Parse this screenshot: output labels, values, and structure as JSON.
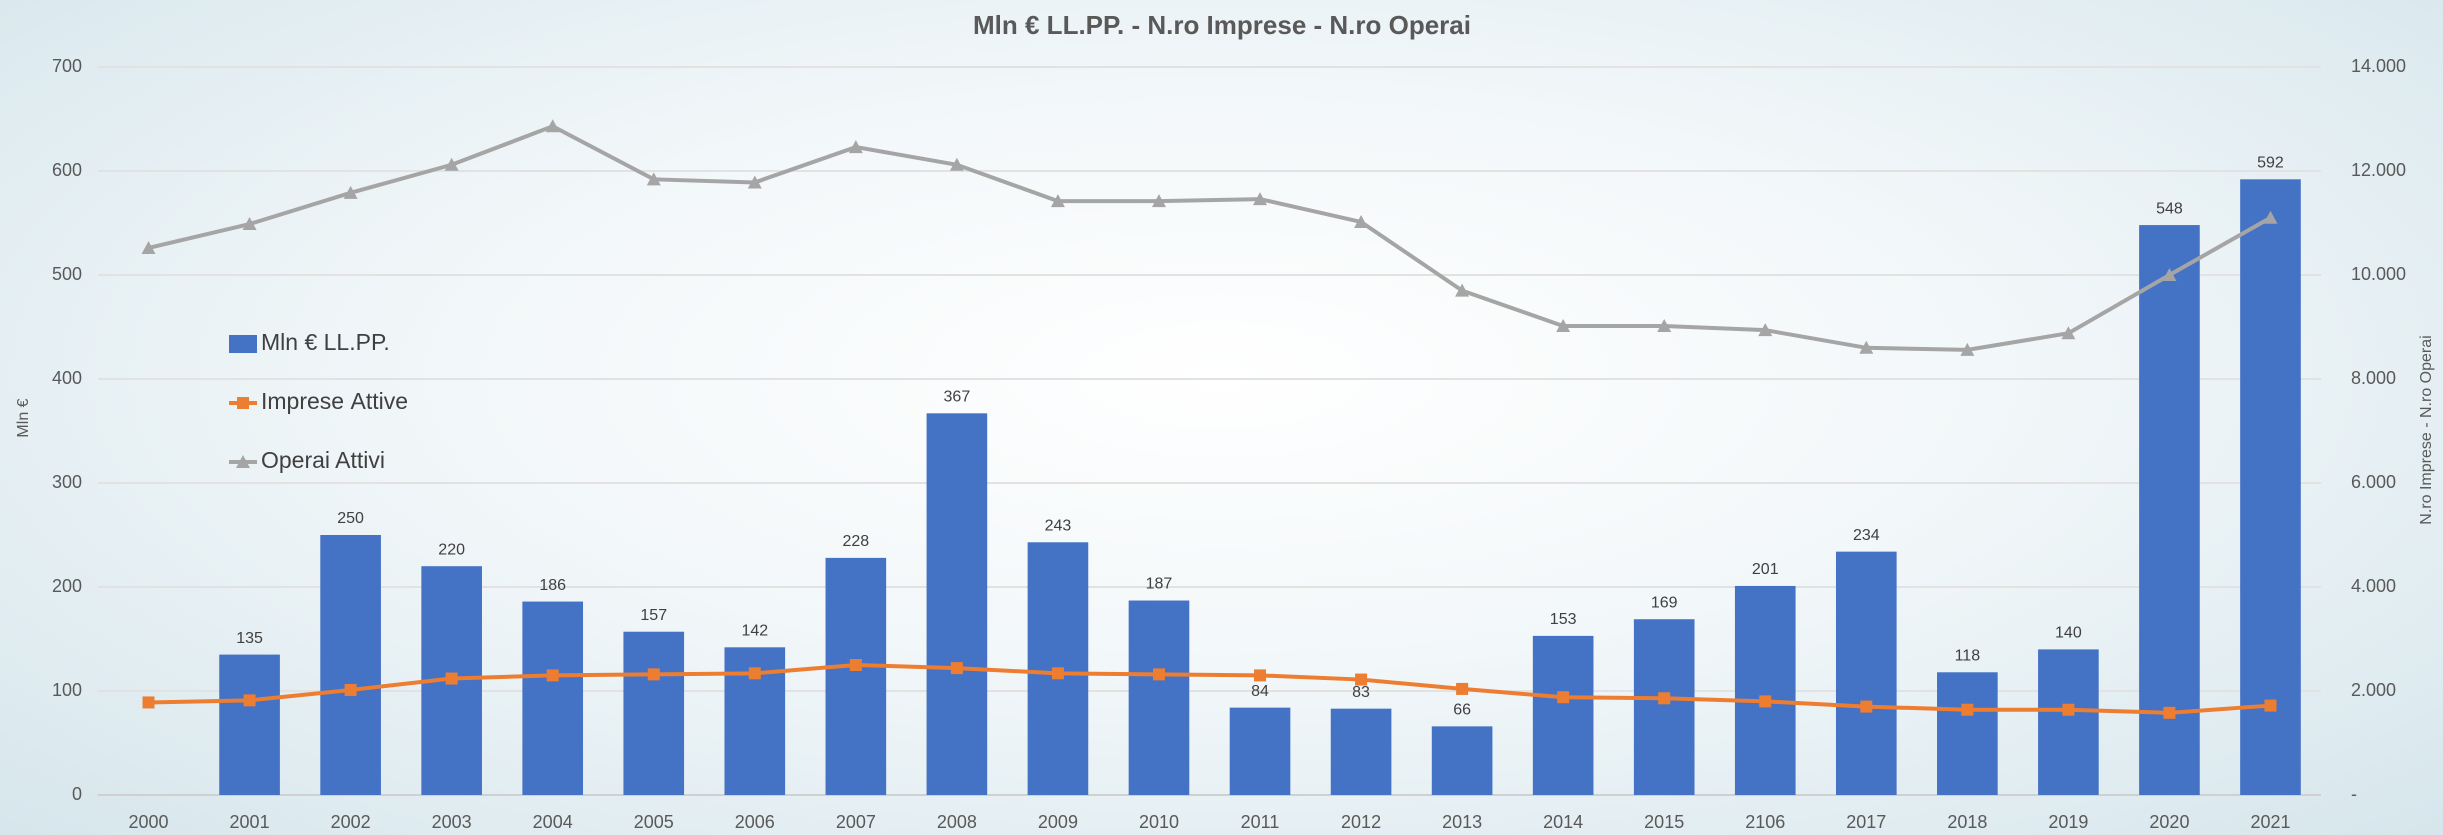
{
  "chart_data": {
    "type": "bar-line",
    "title": "Mln  € LL.PP.  - N.ro Imprese - N.ro Operai",
    "ylabel": "Mln €",
    "y2label": "N.ro Imprese - N.ro Operai",
    "categories": [
      "2000",
      "2001",
      "2002",
      "2003",
      "2004",
      "2005",
      "2006",
      "2007",
      "2008",
      "2009",
      "2010",
      "2011",
      "2012",
      "2013",
      "2014",
      "2015",
      "2106",
      "2017",
      "2018",
      "2019",
      "2020",
      "2021"
    ],
    "series": [
      {
        "name": "Mln € LL.PP.",
        "type": "bar",
        "color": "#4472c4",
        "axis": "y",
        "values": [
          null,
          135,
          250,
          220,
          186,
          157,
          142,
          228,
          367,
          243,
          187,
          84,
          83,
          66,
          153,
          169,
          201,
          234,
          118,
          140,
          548,
          592
        ]
      },
      {
        "name": "Impresе Attive",
        "type": "line",
        "marker": "square",
        "color": "#ed7d31",
        "axis": "y2",
        "values": [
          1780,
          1820,
          2020,
          2240,
          2300,
          2320,
          2340,
          2500,
          2440,
          2340,
          2320,
          2300,
          2220,
          2040,
          1880,
          1860,
          1800,
          1700,
          1640,
          1640,
          1580,
          1720
        ]
      },
      {
        "name": "Operai Attivi",
        "type": "line",
        "marker": "triangle",
        "color": "#a5a5a5",
        "axis": "y2",
        "values": [
          10520,
          10980,
          11580,
          12120,
          12860,
          11840,
          11780,
          12460,
          12120,
          11420,
          11420,
          11460,
          11020,
          9700,
          9020,
          9020,
          8940,
          8600,
          8560,
          8880,
          10000,
          11100
        ]
      }
    ],
    "ylim": [
      0,
      700
    ],
    "yticks": [
      0,
      100,
      200,
      300,
      400,
      500,
      600,
      700
    ],
    "y2lim": [
      0,
      14000
    ],
    "y2ticks": [
      {
        "value": 0,
        "label": "-"
      },
      {
        "value": 2000,
        "label": "2.000"
      },
      {
        "value": 4000,
        "label": "4.000"
      },
      {
        "value": 6000,
        "label": "6.000"
      },
      {
        "value": 8000,
        "label": "8.000"
      },
      {
        "value": 10000,
        "label": "10.000"
      },
      {
        "value": 12000,
        "label": "12.000"
      },
      {
        "value": 14000,
        "label": "14.000"
      }
    ],
    "grid": true,
    "legend": "left"
  }
}
